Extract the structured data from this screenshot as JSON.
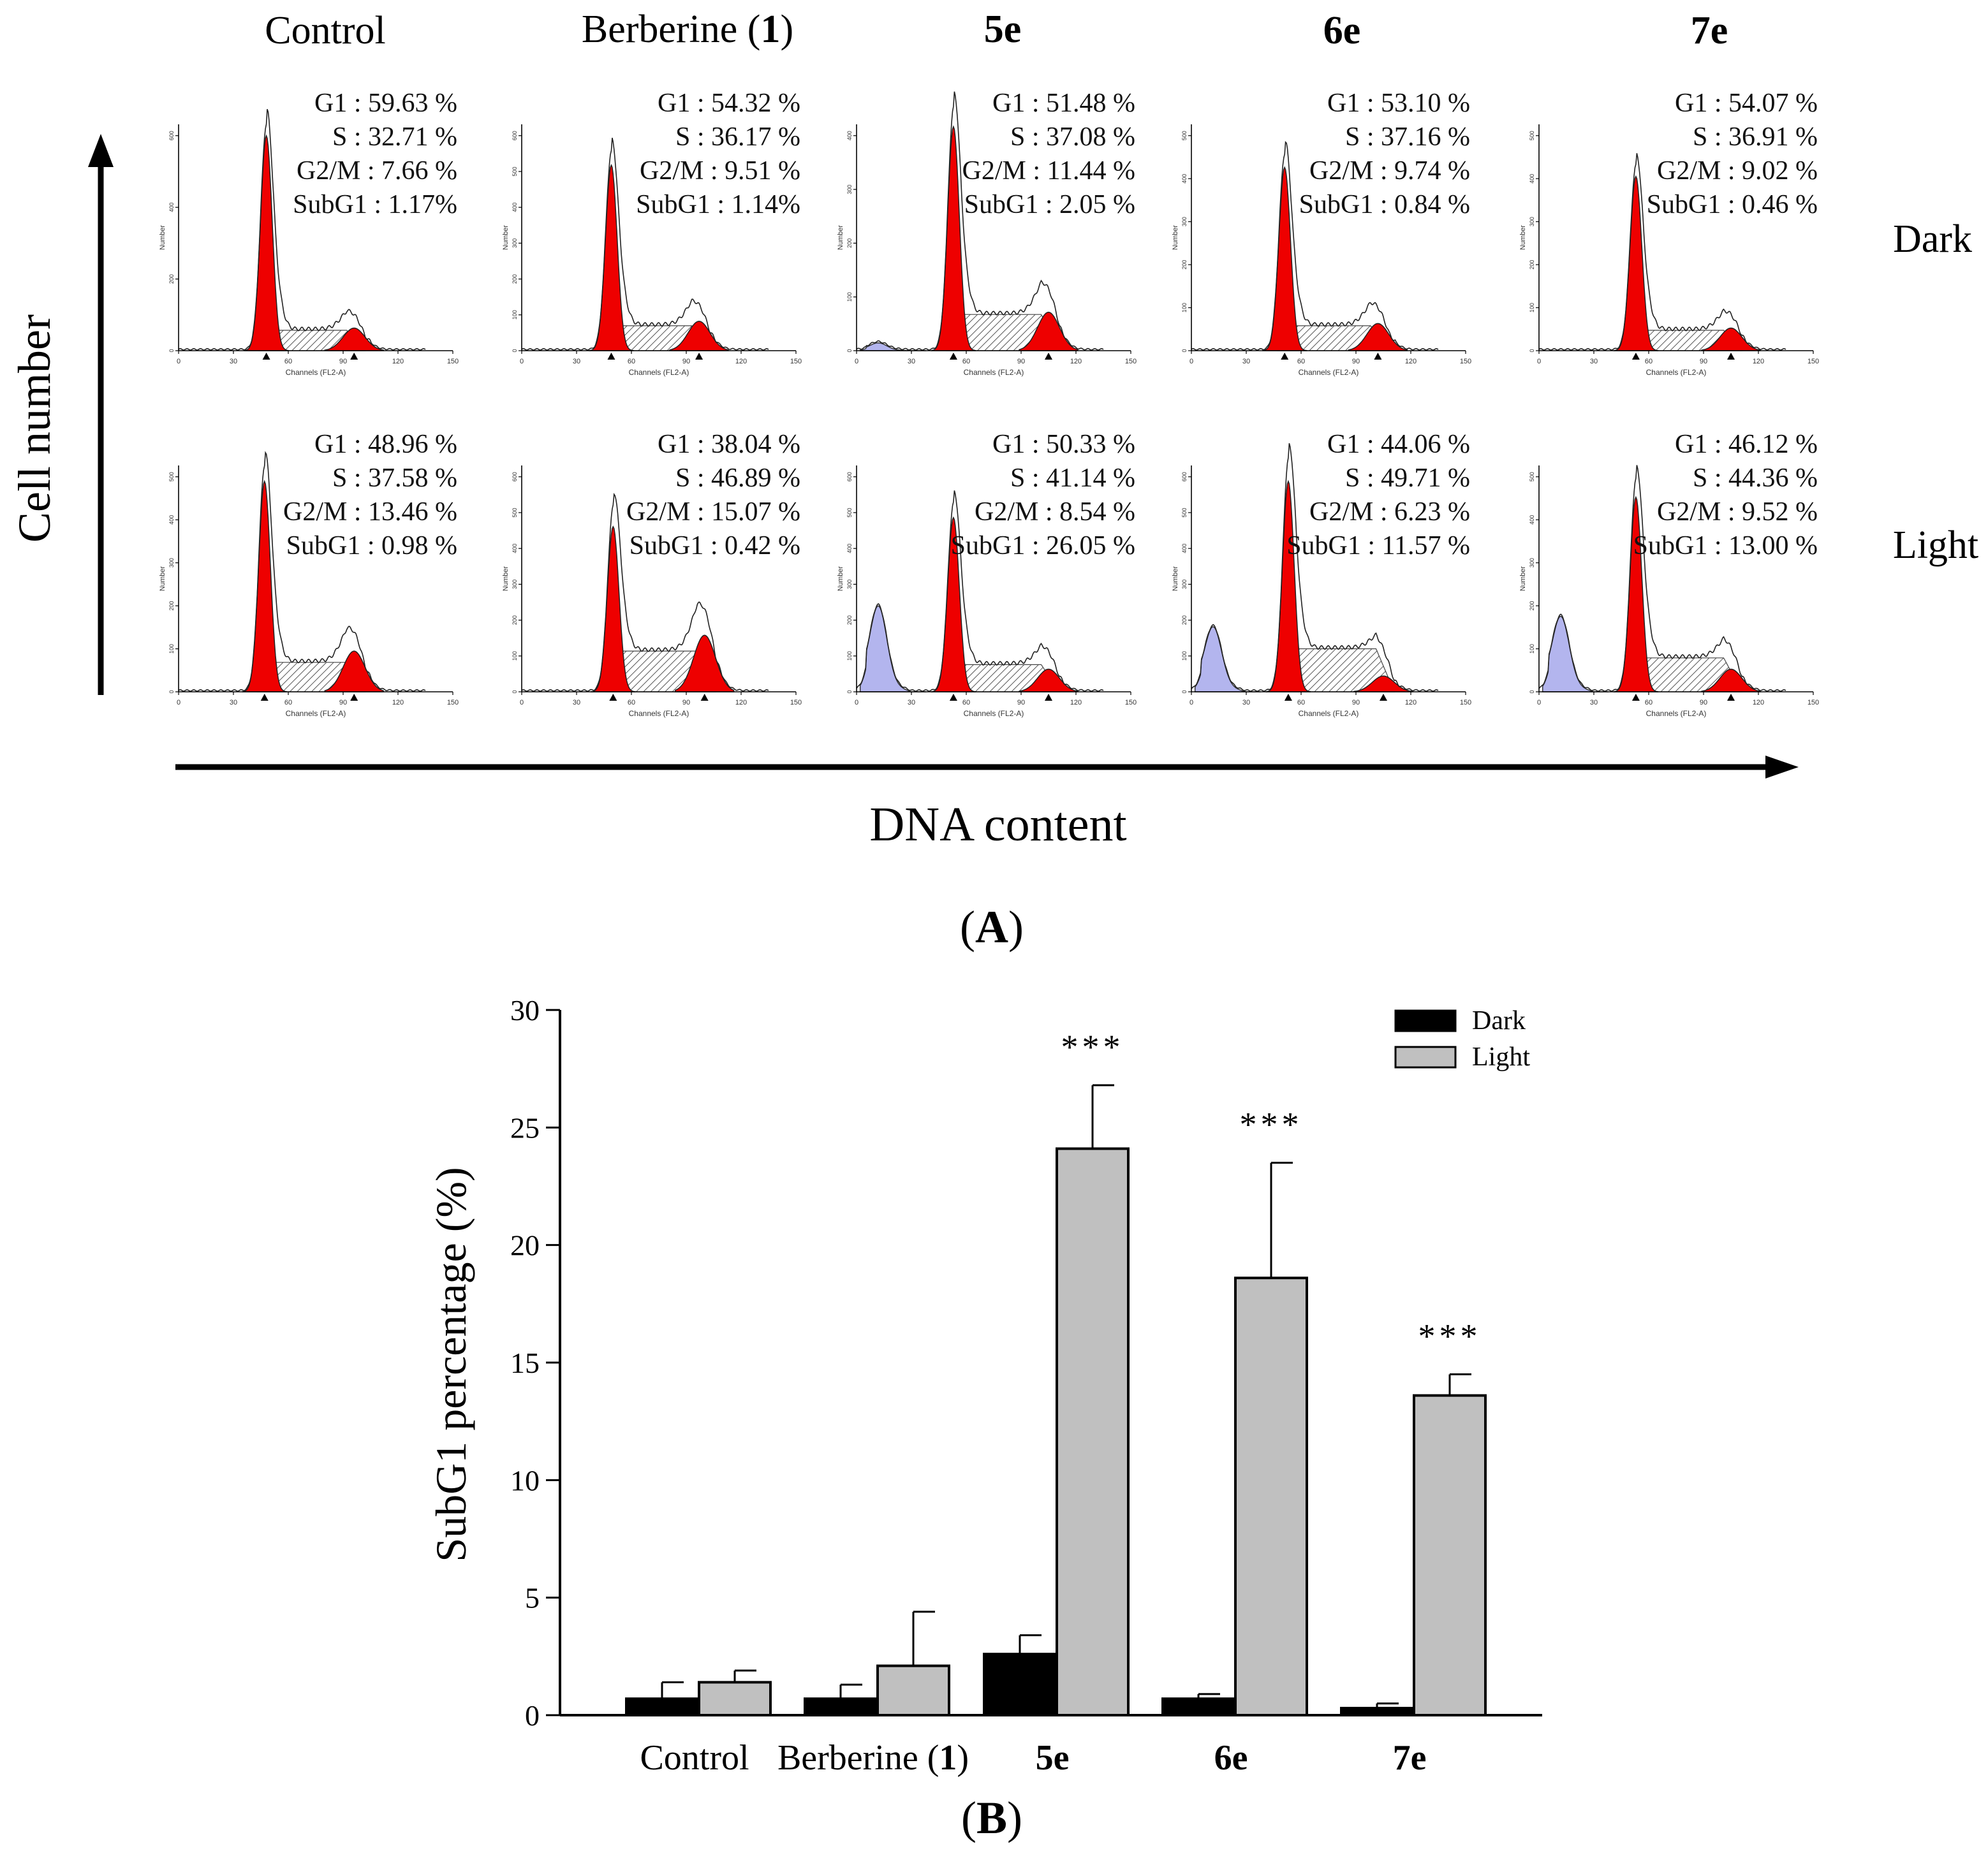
{
  "chart_data": [
    {
      "type": "histogram-grid",
      "panel_label": "A",
      "column_labels": [
        "Control",
        "Berberine (1)",
        "5e",
        "6e",
        "7e"
      ],
      "row_labels": [
        "Dark",
        "Light"
      ],
      "y_axis_label": "Cell number",
      "x_axis_label": "DNA content",
      "panel_xlabel": "Channels (FL2-A)",
      "panel_ylabel": "Number",
      "panel_xticks": [
        "0",
        "30",
        "60",
        "90",
        "120",
        "150"
      ],
      "panels": [
        {
          "row": "Dark",
          "column": "Control",
          "lines": [
            "G1 : 59.63 %",
            "S : 32.71 %",
            "G2/M : 7.66 %",
            "SubG1 : 1.17%"
          ],
          "g1_peak_channel": 48,
          "g2_peak_channel": 96,
          "g1_height": 0.95,
          "g2_height": 0.1,
          "s_height": 0.09,
          "subg1_height": 0.0,
          "yticks": [
            "0",
            "200",
            "400",
            "600"
          ]
        },
        {
          "row": "Dark",
          "column": "Berberine (1)",
          "lines": [
            "G1 : 54.32 %",
            "S : 36.17 %",
            "G2/M : 9.51 %",
            "SubG1 : 1.14%"
          ],
          "g1_peak_channel": 49,
          "g2_peak_channel": 97,
          "g1_height": 0.82,
          "g2_height": 0.13,
          "s_height": 0.11,
          "subg1_height": 0.0,
          "yticks": [
            "0",
            "100",
            "200",
            "300",
            "400",
            "500",
            "600"
          ]
        },
        {
          "row": "Dark",
          "column": "5e",
          "lines": [
            "G1 : 51.48 %",
            "S : 37.08 %",
            "G2/M : 11.44 %",
            "SubG1 : 2.05 %"
          ],
          "g1_peak_channel": 53,
          "g2_peak_channel": 105,
          "g1_height": 0.99,
          "g2_height": 0.17,
          "s_height": 0.16,
          "subg1_height": 0.03,
          "yticks": [
            "0",
            "100",
            "200",
            "300",
            "400"
          ]
        },
        {
          "row": "Dark",
          "column": "6e",
          "lines": [
            "G1 : 53.10 %",
            "S : 37.16 %",
            "G2/M : 9.74 %",
            "SubG1 : 0.84 %"
          ],
          "g1_peak_channel": 51,
          "g2_peak_channel": 102,
          "g1_height": 0.81,
          "g2_height": 0.12,
          "s_height": 0.11,
          "subg1_height": 0.0,
          "yticks": [
            "0",
            "100",
            "200",
            "300",
            "400",
            "500"
          ]
        },
        {
          "row": "Dark",
          "column": "7e",
          "lines": [
            "G1 : 54.07 %",
            "S : 36.91 %",
            "G2/M : 9.02 %",
            "SubG1 : 0.46 %"
          ],
          "g1_peak_channel": 53,
          "g2_peak_channel": 105,
          "g1_height": 0.77,
          "g2_height": 0.1,
          "s_height": 0.09,
          "subg1_height": 0.0,
          "yticks": [
            "0",
            "100",
            "200",
            "300",
            "400",
            "500"
          ]
        },
        {
          "row": "Light",
          "column": "Control",
          "lines": [
            "G1 : 48.96 %",
            "S : 37.58 %",
            "G2/M : 13.46 %",
            "SubG1 : 0.98 %"
          ],
          "g1_peak_channel": 47,
          "g2_peak_channel": 96,
          "g1_height": 0.93,
          "g2_height": 0.18,
          "s_height": 0.13,
          "subg1_height": 0.0,
          "yticks": [
            "0",
            "100",
            "200",
            "300",
            "400",
            "500"
          ]
        },
        {
          "row": "Light",
          "column": "Berberine (1)",
          "lines": [
            "G1 : 38.04 %",
            "S : 46.89 %",
            "G2/M : 15.07 %",
            "SubG1 : 0.42 %"
          ],
          "g1_peak_channel": 50,
          "g2_peak_channel": 100,
          "g1_height": 0.73,
          "g2_height": 0.25,
          "s_height": 0.18,
          "subg1_height": 0.0,
          "yticks": [
            "0",
            "100",
            "200",
            "300",
            "400",
            "500",
            "600"
          ]
        },
        {
          "row": "Light",
          "column": "5e",
          "lines": [
            "G1 : 50.33 %",
            "S : 41.14 %",
            "G2/M : 8.54 %",
            "SubG1 : 26.05 %"
          ],
          "g1_peak_channel": 53,
          "g2_peak_channel": 105,
          "g1_height": 0.77,
          "g2_height": 0.1,
          "s_height": 0.12,
          "subg1_height": 0.33,
          "yticks": [
            "0",
            "100",
            "200",
            "300",
            "400",
            "500",
            "600"
          ]
        },
        {
          "row": "Light",
          "column": "6e",
          "lines": [
            "G1 : 44.06 %",
            "S : 49.71 %",
            "G2/M : 6.23 %",
            "SubG1 : 11.57 %"
          ],
          "g1_peak_channel": 53,
          "g2_peak_channel": 105,
          "g1_height": 0.93,
          "g2_height": 0.07,
          "s_height": 0.19,
          "subg1_height": 0.25,
          "yticks": [
            "0",
            "100",
            "200",
            "300",
            "400",
            "500",
            "600"
          ]
        },
        {
          "row": "Light",
          "column": "7e",
          "lines": [
            "G1 : 46.12 %",
            "S : 44.36 %",
            "G2/M : 9.52 %",
            "SubG1 : 13.00 %"
          ],
          "g1_peak_channel": 53,
          "g2_peak_channel": 105,
          "g1_height": 0.86,
          "g2_height": 0.1,
          "s_height": 0.15,
          "subg1_height": 0.29,
          "yticks": [
            "0",
            "100",
            "200",
            "300",
            "400",
            "500"
          ]
        }
      ]
    },
    {
      "type": "bar",
      "panel_label": "B",
      "categories": [
        "Control",
        "Berberine (1)",
        "5e",
        "6e",
        "7e"
      ],
      "bold_categories": [
        "5e",
        "6e",
        "7e"
      ],
      "series": [
        {
          "name": "Dark",
          "values": [
            0.7,
            0.7,
            2.6,
            0.7,
            0.3
          ],
          "errors": [
            0.7,
            0.6,
            0.8,
            0.2,
            0.2
          ]
        },
        {
          "name": "Light",
          "values": [
            1.4,
            2.1,
            24.1,
            18.6,
            13.6
          ],
          "errors": [
            0.5,
            2.3,
            2.7,
            4.9,
            0.9
          ]
        }
      ],
      "significance": [
        "",
        "",
        "***",
        "***",
        "***"
      ],
      "ylabel": "SubG1 percentage (%)",
      "xlabel": "",
      "ylim": [
        0,
        30
      ],
      "yticks": [
        0,
        5,
        10,
        15,
        20,
        25,
        30
      ],
      "legend_position": "top-right",
      "grid": false,
      "colors": {
        "Dark": "#000000",
        "Light": "#c0c0c0"
      }
    }
  ],
  "colors": {
    "g1_fill": "#ee0000",
    "g2_fill": "#ee0000",
    "subg1_fill": "#b3b5ee",
    "s_hatch": "#555555",
    "axis": "#000000"
  }
}
